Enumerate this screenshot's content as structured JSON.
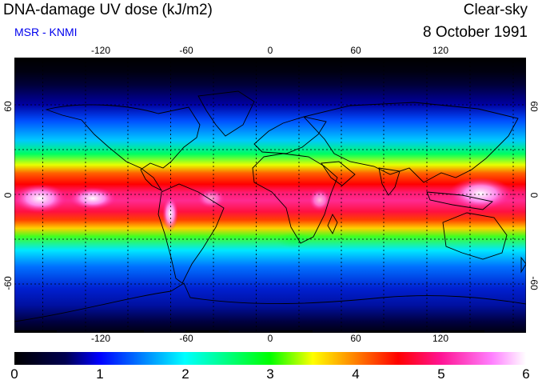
{
  "header": {
    "title": "DNA-damage UV dose (kJ/m2)",
    "credit": "MSR - KNMI",
    "sky_condition": "Clear-sky",
    "date": "8 October 1991"
  },
  "map": {
    "projection": "equirectangular",
    "lon_ticks": [
      "-120",
      "-60",
      "0",
      "60",
      "120"
    ],
    "lat_ticks_left": [
      "60",
      "0",
      "-60"
    ],
    "lat_ticks_right": [
      "60",
      "0",
      "-60"
    ],
    "lon_values": [
      -120,
      -60,
      0,
      60,
      120
    ],
    "lat_values": [
      60,
      0,
      -60
    ],
    "gridline_lons": [
      -150,
      -120,
      -90,
      -60,
      -30,
      0,
      30,
      60,
      90,
      120,
      150
    ],
    "gridline_lats": [
      60,
      30,
      0,
      -30,
      -60
    ],
    "lon_range": [
      -180,
      180
    ],
    "lat_range": [
      -90,
      90
    ]
  },
  "colorbar": {
    "min": 0,
    "max": 6,
    "labels": [
      "0",
      "1",
      "2",
      "3",
      "4",
      "5",
      "6"
    ],
    "stops": [
      {
        "value": 0.0,
        "color": "#000000"
      },
      {
        "value": 0.6,
        "color": "#000050"
      },
      {
        "value": 1.0,
        "color": "#0000ff"
      },
      {
        "value": 1.5,
        "color": "#0080ff"
      },
      {
        "value": 2.0,
        "color": "#00ffff"
      },
      {
        "value": 2.5,
        "color": "#00ff80"
      },
      {
        "value": 3.0,
        "color": "#00ff00"
      },
      {
        "value": 3.5,
        "color": "#ffff00"
      },
      {
        "value": 4.0,
        "color": "#ff8000"
      },
      {
        "value": 4.5,
        "color": "#ff0000"
      },
      {
        "value": 5.0,
        "color": "#ff1493"
      },
      {
        "value": 5.6,
        "color": "#ff80ff"
      },
      {
        "value": 6.0,
        "color": "#ffffff"
      }
    ]
  }
}
